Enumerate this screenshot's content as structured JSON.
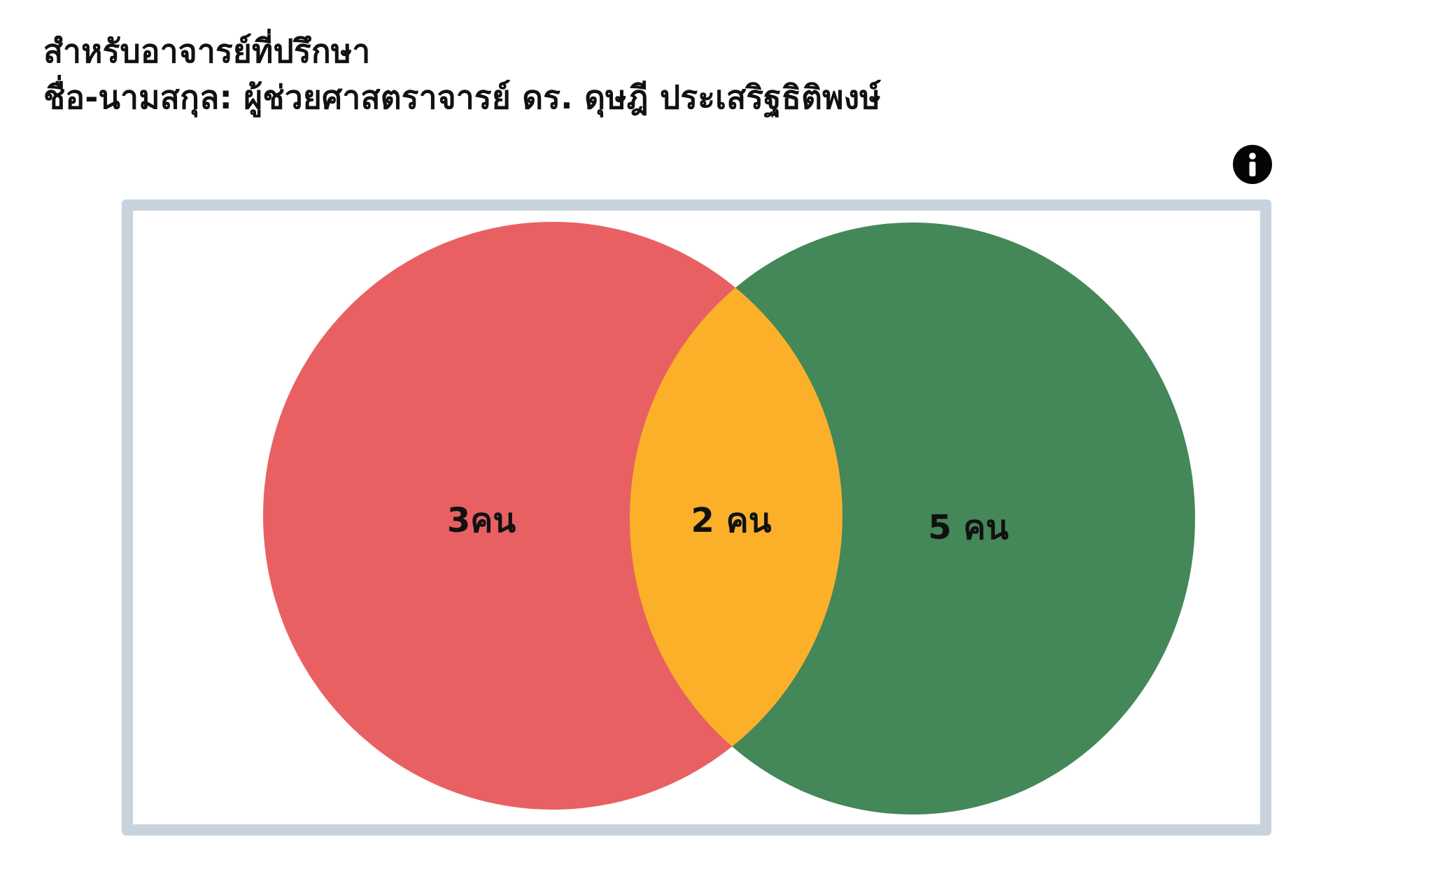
{
  "header": {
    "line1": "สำหรับอาจารย์ที่ปรึกษา",
    "line2": "ชื่อ-นามสกุล: ผู้ช่วยศาสตราจารย์ ดร. ดุษฎี ประเสริฐธิติพงษ์"
  },
  "info_icon": "info-icon",
  "venn": {
    "left": {
      "label": "3คน",
      "count": 3,
      "color": "#e96063"
    },
    "overlap": {
      "label": "2 คน",
      "count": 2,
      "color": "#fcb02a"
    },
    "right": {
      "label": "5 คน",
      "count": 5,
      "color": "#448758"
    }
  },
  "frame_color": "#c9d3dd"
}
